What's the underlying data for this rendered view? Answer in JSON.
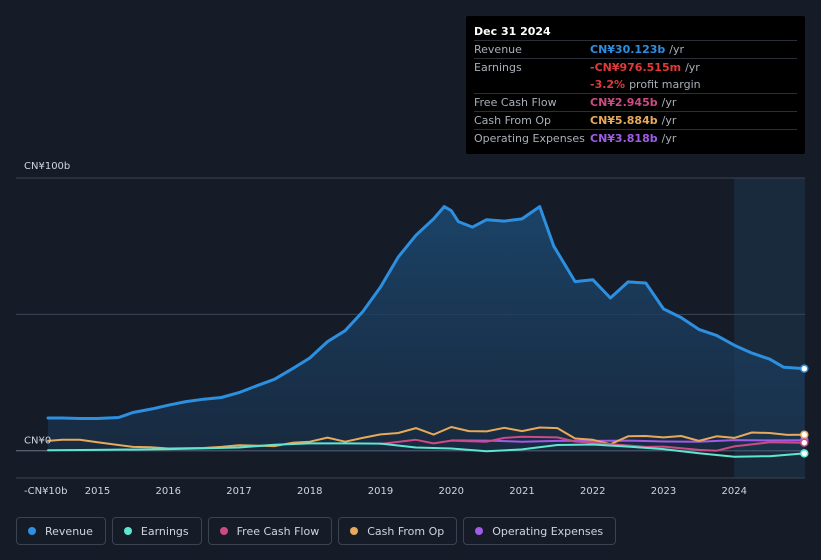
{
  "colors": {
    "revenue": "#2d8fe0",
    "earnings": "#5ee6d0",
    "free_cash_flow": "#cc4b84",
    "cash_from_op": "#e8a95a",
    "operating_expenses": "#a05ce8",
    "negative": "#e03b3b"
  },
  "tooltip": {
    "date": "Dec 31 2024",
    "rows": [
      {
        "label": "Revenue",
        "value": "CN¥30.123b",
        "unit": "/yr",
        "color": "#2d8fe0"
      },
      {
        "label": "Earnings",
        "value": "-CN¥976.515m",
        "unit": "/yr",
        "color": "#e03b3b"
      },
      {
        "label": "",
        "value": "-3.2%",
        "unit": "profit margin",
        "color": "#e03b3b"
      },
      {
        "label": "Free Cash Flow",
        "value": "CN¥2.945b",
        "unit": "/yr",
        "color": "#cc4b84"
      },
      {
        "label": "Cash From Op",
        "value": "CN¥5.884b",
        "unit": "/yr",
        "color": "#e8a95a"
      },
      {
        "label": "Operating Expenses",
        "value": "CN¥3.818b",
        "unit": "/yr",
        "color": "#a05ce8"
      }
    ]
  },
  "legend": [
    {
      "label": "Revenue",
      "icon": "revenue-dot-icon",
      "color": "#2d8fe0"
    },
    {
      "label": "Earnings",
      "icon": "earnings-dot-icon",
      "color": "#5ee6d0"
    },
    {
      "label": "Free Cash Flow",
      "icon": "free-cash-flow-dot-icon",
      "color": "#cc4b84"
    },
    {
      "label": "Cash From Op",
      "icon": "cash-from-op-dot-icon",
      "color": "#e8a95a"
    },
    {
      "label": "Operating Expenses",
      "icon": "operating-expenses-dot-icon",
      "color": "#a05ce8"
    }
  ],
  "chart_data": {
    "type": "line",
    "title": "",
    "ylabel": "CNY",
    "ylim": [
      -10,
      100
    ],
    "y_tick_labels": [
      {
        "value": 100,
        "label": "CN¥100b"
      },
      {
        "value": 0,
        "label": "CN¥0"
      },
      {
        "value": -10,
        "label": "-CN¥10b"
      }
    ],
    "x_ticks": [
      2015,
      2016,
      2017,
      2018,
      2019,
      2020,
      2021,
      2022,
      2023,
      2024
    ],
    "xlim": [
      2014.3,
      2025.0
    ],
    "highlight_from": 2024.0,
    "series": [
      {
        "name": "Revenue",
        "key": "revenue",
        "area": true,
        "points": [
          [
            2014.3,
            12
          ],
          [
            2014.5,
            12
          ],
          [
            2014.75,
            11.8
          ],
          [
            2015.0,
            11.8
          ],
          [
            2015.3,
            12.2
          ],
          [
            2015.5,
            14
          ],
          [
            2015.8,
            15.5
          ],
          [
            2016.0,
            16.7
          ],
          [
            2016.25,
            18
          ],
          [
            2016.5,
            18.9
          ],
          [
            2016.75,
            19.5
          ],
          [
            2017.0,
            21.3
          ],
          [
            2017.25,
            23.8
          ],
          [
            2017.5,
            26.2
          ],
          [
            2017.75,
            30
          ],
          [
            2018.0,
            34
          ],
          [
            2018.25,
            40
          ],
          [
            2018.5,
            44
          ],
          [
            2018.75,
            51
          ],
          [
            2019.0,
            60
          ],
          [
            2019.25,
            71
          ],
          [
            2019.5,
            79
          ],
          [
            2019.75,
            85
          ],
          [
            2019.9,
            89.5
          ],
          [
            2020.0,
            88
          ],
          [
            2020.1,
            84
          ],
          [
            2020.3,
            82
          ],
          [
            2020.5,
            84.7
          ],
          [
            2020.75,
            84.2
          ],
          [
            2021.0,
            85
          ],
          [
            2021.25,
            89.5
          ],
          [
            2021.45,
            75
          ],
          [
            2021.75,
            62
          ],
          [
            2022.0,
            62.7
          ],
          [
            2022.25,
            56
          ],
          [
            2022.5,
            61.9
          ],
          [
            2022.75,
            61.5
          ],
          [
            2023.0,
            52
          ],
          [
            2023.25,
            48.8
          ],
          [
            2023.5,
            44.5
          ],
          [
            2023.75,
            42.3
          ],
          [
            2024.0,
            38.7
          ],
          [
            2024.25,
            35.8
          ],
          [
            2024.5,
            33.6
          ],
          [
            2024.7,
            30.6
          ],
          [
            2024.99,
            30.1
          ]
        ]
      },
      {
        "name": "Earnings",
        "key": "earnings",
        "points": [
          [
            2014.3,
            0.2
          ],
          [
            2015.0,
            0.3
          ],
          [
            2016.0,
            0.6
          ],
          [
            2017.0,
            1.2
          ],
          [
            2017.5,
            2.2
          ],
          [
            2018.0,
            2.7
          ],
          [
            2018.5,
            2.7
          ],
          [
            2019.0,
            2.6
          ],
          [
            2019.5,
            1.2
          ],
          [
            2020.0,
            0.8
          ],
          [
            2020.5,
            -0.2
          ],
          [
            2021.0,
            0.5
          ],
          [
            2021.5,
            2.1
          ],
          [
            2022.0,
            2.3
          ],
          [
            2022.5,
            1.5
          ],
          [
            2023.0,
            0.6
          ],
          [
            2023.5,
            -0.9
          ],
          [
            2024.0,
            -2.2
          ],
          [
            2024.5,
            -2.0
          ],
          [
            2024.99,
            -0.98
          ]
        ]
      },
      {
        "name": "Free Cash Flow",
        "key": "free_cash_flow",
        "points": [
          [
            2019.0,
            2.5
          ],
          [
            2019.5,
            4.0
          ],
          [
            2019.75,
            2.7
          ],
          [
            2020.0,
            3.7
          ],
          [
            2020.5,
            3.3
          ],
          [
            2020.75,
            4.7
          ],
          [
            2021.0,
            5.1
          ],
          [
            2021.5,
            4.9
          ],
          [
            2021.75,
            3.4
          ],
          [
            2022.0,
            2.9
          ],
          [
            2022.5,
            1.9
          ],
          [
            2022.75,
            1.4
          ],
          [
            2023.0,
            1.5
          ],
          [
            2023.5,
            0.3
          ],
          [
            2023.75,
            0.0
          ],
          [
            2024.0,
            1.6
          ],
          [
            2024.5,
            3.1
          ],
          [
            2024.99,
            2.95
          ]
        ]
      },
      {
        "name": "Cash From Op",
        "key": "cash_from_op",
        "points": [
          [
            2014.3,
            3.6
          ],
          [
            2014.5,
            4.0
          ],
          [
            2014.75,
            4.0
          ],
          [
            2015.0,
            3.1
          ],
          [
            2015.5,
            1.4
          ],
          [
            2015.75,
            1.3
          ],
          [
            2016.0,
            0.8
          ],
          [
            2016.5,
            1.0
          ],
          [
            2016.75,
            1.4
          ],
          [
            2017.0,
            2.0
          ],
          [
            2017.5,
            1.7
          ],
          [
            2017.75,
            2.9
          ],
          [
            2018.0,
            3.3
          ],
          [
            2018.25,
            4.8
          ],
          [
            2018.5,
            3.3
          ],
          [
            2018.75,
            4.7
          ],
          [
            2019.0,
            6.0
          ],
          [
            2019.25,
            6.5
          ],
          [
            2019.5,
            8.3
          ],
          [
            2019.75,
            5.9
          ],
          [
            2020.0,
            8.7
          ],
          [
            2020.25,
            7.2
          ],
          [
            2020.5,
            7.1
          ],
          [
            2020.75,
            8.4
          ],
          [
            2021.0,
            7.2
          ],
          [
            2021.25,
            8.5
          ],
          [
            2021.5,
            8.3
          ],
          [
            2021.75,
            4.5
          ],
          [
            2022.0,
            4.0
          ],
          [
            2022.25,
            2.4
          ],
          [
            2022.5,
            5.3
          ],
          [
            2022.75,
            5.4
          ],
          [
            2023.0,
            4.9
          ],
          [
            2023.25,
            5.4
          ],
          [
            2023.5,
            3.6
          ],
          [
            2023.75,
            5.3
          ],
          [
            2024.0,
            4.7
          ],
          [
            2024.25,
            6.7
          ],
          [
            2024.5,
            6.5
          ],
          [
            2024.75,
            5.8
          ],
          [
            2024.99,
            5.88
          ]
        ]
      },
      {
        "name": "Operating Expenses",
        "key": "operating_expenses",
        "points": [
          [
            2020.0,
            3.8
          ],
          [
            2020.5,
            3.7
          ],
          [
            2021.0,
            3.3
          ],
          [
            2021.5,
            3.6
          ],
          [
            2022.0,
            3.6
          ],
          [
            2022.5,
            3.7
          ],
          [
            2023.0,
            3.4
          ],
          [
            2023.5,
            3.3
          ],
          [
            2024.0,
            3.9
          ],
          [
            2024.5,
            3.8
          ],
          [
            2024.99,
            3.82
          ]
        ]
      }
    ]
  }
}
